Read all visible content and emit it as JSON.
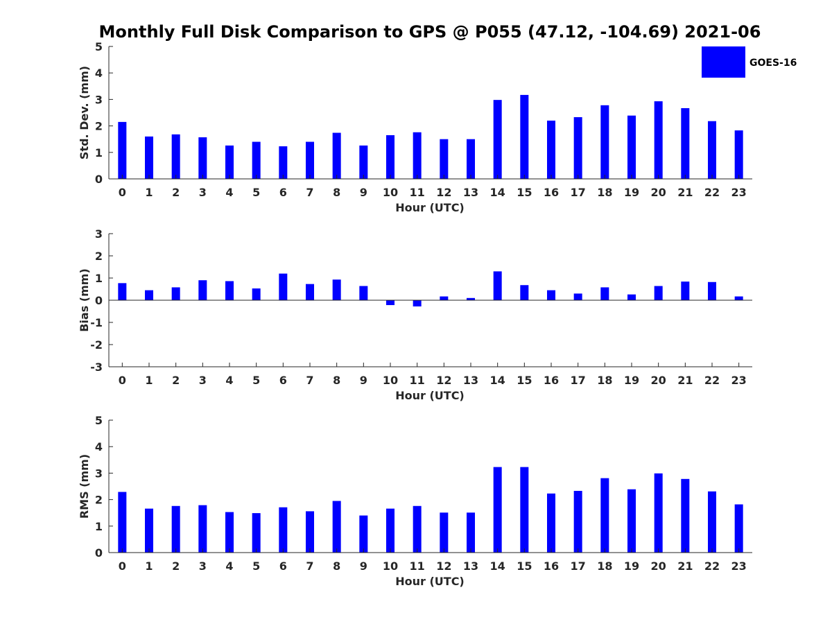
{
  "title": "Monthly Full Disk Comparison to GPS @ P055 (47.12, -104.69) 2021-06",
  "legend": {
    "label": "GOES-16",
    "color": "#0000ff",
    "placement": "top-right"
  },
  "chart_data": [
    {
      "type": "bar",
      "xlabel": "Hour (UTC)",
      "ylabel": "Std. Dev. (mm)",
      "ylim": [
        0,
        5
      ],
      "yticks": [
        0,
        1,
        2,
        3,
        4,
        5
      ],
      "categories": [
        "0",
        "1",
        "2",
        "3",
        "4",
        "5",
        "6",
        "7",
        "8",
        "9",
        "10",
        "11",
        "12",
        "13",
        "14",
        "15",
        "16",
        "17",
        "18",
        "19",
        "20",
        "21",
        "22",
        "23"
      ],
      "series": [
        {
          "name": "GOES-16",
          "color": "#0000ff",
          "values": [
            2.15,
            1.6,
            1.68,
            1.57,
            1.26,
            1.4,
            1.23,
            1.4,
            1.74,
            1.26,
            1.65,
            1.76,
            1.5,
            1.5,
            2.98,
            3.17,
            2.2,
            2.33,
            2.78,
            2.39,
            2.93,
            2.67,
            2.18,
            1.83
          ]
        }
      ]
    },
    {
      "type": "bar",
      "xlabel": "Hour (UTC)",
      "ylabel": "Bias (mm)",
      "ylim": [
        -3,
        3
      ],
      "yticks": [
        -3,
        -2,
        -1,
        0,
        1,
        2,
        3
      ],
      "categories": [
        "0",
        "1",
        "2",
        "3",
        "4",
        "5",
        "6",
        "7",
        "8",
        "9",
        "10",
        "11",
        "12",
        "13",
        "14",
        "15",
        "16",
        "17",
        "18",
        "19",
        "20",
        "21",
        "22",
        "23"
      ],
      "series": [
        {
          "name": "GOES-16",
          "color": "#0000ff",
          "values": [
            0.77,
            0.45,
            0.58,
            0.9,
            0.86,
            0.53,
            1.2,
            0.73,
            0.93,
            0.64,
            -0.22,
            -0.28,
            0.17,
            0.1,
            1.3,
            0.68,
            0.45,
            0.3,
            0.58,
            0.26,
            0.64,
            0.84,
            0.82,
            0.17
          ]
        }
      ]
    },
    {
      "type": "bar",
      "xlabel": "Hour (UTC)",
      "ylabel": "RMS (mm)",
      "ylim": [
        0,
        5
      ],
      "yticks": [
        0,
        1,
        2,
        3,
        4,
        5
      ],
      "categories": [
        "0",
        "1",
        "2",
        "3",
        "4",
        "5",
        "6",
        "7",
        "8",
        "9",
        "10",
        "11",
        "12",
        "13",
        "14",
        "15",
        "16",
        "17",
        "18",
        "19",
        "20",
        "21",
        "22",
        "23"
      ],
      "series": [
        {
          "name": "GOES-16",
          "color": "#0000ff",
          "values": [
            2.29,
            1.66,
            1.76,
            1.79,
            1.53,
            1.49,
            1.71,
            1.56,
            1.95,
            1.4,
            1.66,
            1.76,
            1.51,
            1.51,
            3.23,
            3.23,
            2.23,
            2.33,
            2.81,
            2.39,
            2.99,
            2.78,
            2.31,
            1.82
          ]
        }
      ]
    }
  ]
}
